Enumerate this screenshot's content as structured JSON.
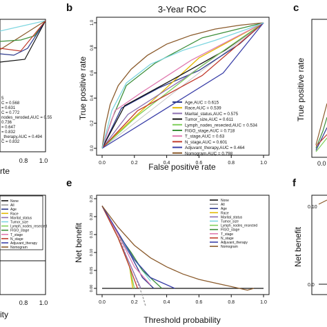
{
  "panels": {
    "a_partial": {
      "letter": "",
      "tick_labels": [
        "0.8",
        "1.0"
      ],
      "xlabel_fragment": "rte",
      "legend_fragments": [
        "5",
        "C = 0.568",
        "= 0.631",
        "C = 0.772",
        "nodes_reroded,AUC = 0.55",
        "0.736",
        "= 0.647",
        "= 0.832",
        "_therapy,AUC = 0.494",
        "C = 0.832"
      ]
    },
    "b": {
      "letter": "b",
      "title": "3-Year ROC",
      "xlabel": "False positive rate",
      "ylabel": "True positive rate"
    },
    "c_partial": {
      "letter": "c"
    },
    "d_partial": {
      "tick_labels": [
        "0.8",
        "1.0"
      ],
      "xlabel_fragment": "ity",
      "legend": [
        "None",
        "All",
        "Age",
        "Race",
        "Marital_status",
        "Tumor_size",
        "Lymph_nodes_resected",
        "FIGO_stage",
        "T_stage",
        "N_stage",
        "Adjuvant_therapy",
        "Nomogram"
      ]
    },
    "e": {
      "letter": "e",
      "xlabel": "Threshold probability",
      "ylabel": "Net benefit",
      "legend": [
        "None",
        "All",
        "Age",
        "Race",
        "Marital_status",
        "Tumor_size",
        "Lymph_nodes_resected",
        "FIGO_stage",
        "T_stage",
        "N_stage",
        "Adjuvant_therapy",
        "Nomogram"
      ]
    },
    "f_partial": {
      "letter": "f",
      "ylabel": "Net benefit"
    }
  },
  "chart_data": [
    {
      "type": "line",
      "panel": "b",
      "title": "3-Year ROC",
      "xlabel": "False positive rate",
      "ylabel": "True positive rate",
      "xlim": [
        0,
        1
      ],
      "ylim": [
        0,
        1
      ],
      "xticks": [
        "0.0",
        "0.2",
        "0.4",
        "0.6",
        "0.8",
        "1.0"
      ],
      "yticks": [
        "0.0",
        "0.2",
        "0.4",
        "0.6",
        "0.8",
        "1.0"
      ],
      "legend_position": "bottom-right",
      "series": [
        {
          "name": "Age,AUC = 0.615",
          "color": "#2d3a8c",
          "x": [
            0,
            0.12,
            0.35,
            0.6,
            0.85,
            1
          ],
          "y": [
            0,
            0.32,
            0.48,
            0.62,
            0.83,
            1
          ]
        },
        {
          "name": "Race,AUC = 0.539",
          "color": "#e3b800",
          "x": [
            0,
            0.16,
            0.6,
            1
          ],
          "y": [
            0,
            0.2,
            0.72,
            1
          ]
        },
        {
          "name": "Marital_status,AUC = 0.575",
          "color": "#8c6fb0",
          "x": [
            0,
            0.16,
            0.5,
            1
          ],
          "y": [
            0,
            0.27,
            0.55,
            1
          ]
        },
        {
          "name": "Tumor_size,AUC = 0.611",
          "color": "#111111",
          "x": [
            0,
            0.14,
            0.44,
            0.76,
            1
          ],
          "y": [
            0,
            0.34,
            0.55,
            0.78,
            1
          ]
        },
        {
          "name": "Lymph_nodes_resected,AUC = 0.534",
          "color": "#7fcf5a",
          "x": [
            0,
            0.22,
            0.62,
            1
          ],
          "y": [
            0,
            0.26,
            0.66,
            1
          ]
        },
        {
          "name": "FIGO_stage,AUC = 0.718",
          "color": "#3c8f3a",
          "x": [
            0,
            0.06,
            0.15,
            0.33,
            0.62,
            1
          ],
          "y": [
            0,
            0.23,
            0.5,
            0.68,
            0.88,
            1
          ]
        },
        {
          "name": "T_stage,AUC = 0.63",
          "color": "#e07ab0",
          "x": [
            0,
            0.08,
            0.25,
            0.55,
            1
          ],
          "y": [
            0,
            0.3,
            0.45,
            0.7,
            1
          ]
        },
        {
          "name": "N_stage,AUC = 0.601",
          "color": "#c0392b",
          "x": [
            0,
            0.22,
            0.62,
            1
          ],
          "y": [
            0,
            0.3,
            0.58,
            1
          ]
        },
        {
          "name": "Adjuvant_therapy,AUC = 0.464",
          "color": "#3a3fa8",
          "x": [
            0,
            0.3,
            0.75,
            1
          ],
          "y": [
            0,
            0.24,
            0.6,
            1
          ]
        },
        {
          "name": "Nomogram,AUC = 0.798",
          "color": "#8a5a2b",
          "x": [
            0,
            0.02,
            0.05,
            0.1,
            0.18,
            0.28,
            0.4,
            0.55,
            0.7,
            0.85,
            1
          ],
          "y": [
            0,
            0.18,
            0.35,
            0.5,
            0.63,
            0.74,
            0.83,
            0.9,
            0.95,
            0.98,
            1
          ]
        },
        {
          "name": "",
          "color": "#7ed6e0",
          "x": [
            0,
            0.06,
            0.15,
            0.3,
            0.5,
            0.7,
            0.9,
            1
          ],
          "y": [
            0,
            0.3,
            0.52,
            0.67,
            0.78,
            0.86,
            0.95,
            1
          ]
        }
      ]
    },
    {
      "type": "line",
      "panel": "e",
      "xlabel": "Threshold probability",
      "ylabel": "Net benefit",
      "xlim": [
        0,
        1
      ],
      "ylim": [
        -0.05,
        0.25
      ],
      "xticks": [
        "0.0",
        "0.2",
        "0.4",
        "0.6",
        "0.8",
        "1.0"
      ],
      "yticks": [
        "0.25",
        "0.20",
        "0.15",
        "0.10",
        "0.05",
        "0.00"
      ],
      "legend_position": "top-right",
      "series": [
        {
          "name": "None",
          "color": "#111111",
          "x": [
            0,
            1
          ],
          "y": [
            0,
            0
          ]
        },
        {
          "name": "All",
          "color": "#999999",
          "x": [
            0,
            0.05,
            0.1,
            0.15,
            0.2,
            0.25,
            0.27
          ],
          "y": [
            0.23,
            0.19,
            0.15,
            0.09,
            0.04,
            -0.02,
            -0.05
          ]
        },
        {
          "name": "Age",
          "color": "#2d3a8c",
          "x": [
            0,
            0.1,
            0.18,
            0.25,
            0.32
          ],
          "y": [
            0.23,
            0.15,
            0.09,
            0.03,
            0
          ]
        },
        {
          "name": "Race",
          "color": "#e3b800",
          "x": [
            0,
            0.1,
            0.17,
            0.19
          ],
          "y": [
            0.23,
            0.14,
            0.06,
            0
          ]
        },
        {
          "name": "Marital_status",
          "color": "#8c6fb0",
          "x": [
            0,
            0.1,
            0.17,
            0.24
          ],
          "y": [
            0.23,
            0.14,
            0.07,
            0
          ]
        },
        {
          "name": "Tumor_size",
          "color": "#7ed6e0",
          "x": [
            0,
            0.1,
            0.2,
            0.3
          ],
          "y": [
            0.23,
            0.15,
            0.08,
            0.02
          ]
        },
        {
          "name": "Lymph_nodes_resected",
          "color": "#7fcf5a",
          "x": [
            0,
            0.1,
            0.17,
            0.2
          ],
          "y": [
            0.23,
            0.14,
            0.06,
            0
          ]
        },
        {
          "name": "FIGO_stage",
          "color": "#3c8f3a",
          "x": [
            0,
            0.1,
            0.18,
            0.25,
            0.37
          ],
          "y": [
            0.23,
            0.15,
            0.1,
            0.05,
            0
          ]
        },
        {
          "name": "T_stage",
          "color": "#e07ab0",
          "x": [
            0,
            0.1,
            0.2,
            0.3
          ],
          "y": [
            0.23,
            0.15,
            0.06,
            0.01
          ]
        },
        {
          "name": "N_stage",
          "color": "#c0392b",
          "x": [
            0,
            0.1,
            0.17,
            0.22
          ],
          "y": [
            0.23,
            0.14,
            0.06,
            0
          ]
        },
        {
          "name": "Adjuvant_therapy",
          "color": "#3a3fa8",
          "x": [
            0,
            0.12,
            0.2,
            0.3,
            0.45
          ],
          "y": [
            0.23,
            0.14,
            0.08,
            0.03,
            0
          ]
        },
        {
          "name": "Nomogram",
          "color": "#8a5a2b",
          "x": [
            0,
            0.1,
            0.2,
            0.3,
            0.4,
            0.5,
            0.6,
            0.7,
            0.8,
            0.9,
            0.94
          ],
          "y": [
            0.23,
            0.17,
            0.12,
            0.085,
            0.06,
            0.04,
            0.025,
            0.015,
            0.005,
            -0.005,
            0.0
          ]
        }
      ]
    }
  ]
}
